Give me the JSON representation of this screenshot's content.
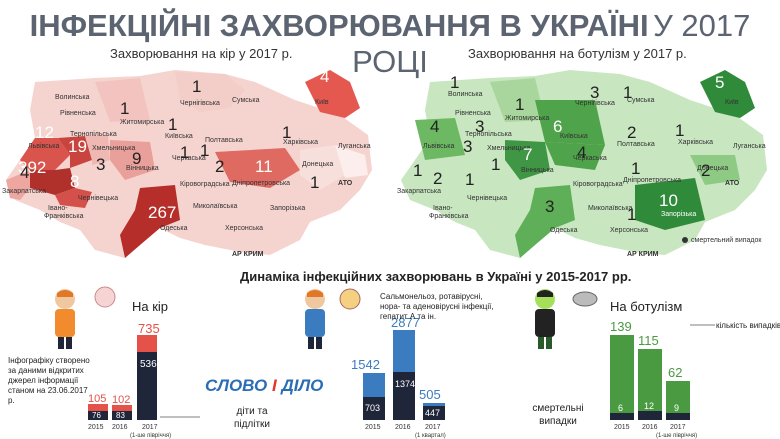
{
  "title": {
    "bold": "ІНФЕКЦІЙНІ ЗАХВОРЮВАННЯ В УКРАЇНІ",
    "light": "У 2017 РОЦІ"
  },
  "maps": {
    "measles": {
      "title": "Захворювання на кір у 2017 р.",
      "regions": {
        "volynska": "Волинська",
        "rivnenska": "Рівненська",
        "zhytomyrska": "Житомирська",
        "chernihivska": "Чернігівська",
        "sumska": "Сумська",
        "kyiv": "Київ",
        "kyivska": "Київська",
        "lvivska": "Львівська",
        "ternopilska": "Тернопільська",
        "khmelnytska": "Хмельницька",
        "vinnytska": "Вінницька",
        "cherkaska": "Черкаська",
        "poltavska": "Полтавська",
        "kharkivska": "Харківська",
        "luhanska": "Луганська",
        "zakarpatska": "Закарпатська",
        "ivano": "Івано-\nФранківська",
        "chernivetska": "Чернівецька",
        "kirovohradska": "Кіровоградська",
        "dnipropetrovska": "Дніпропетровська",
        "donetska": "Донецька",
        "mykolaivska": "Миколаївська",
        "zaporizka": "Запорізька",
        "odeska": "Одеська",
        "khersonska": "Херсонська",
        "ato": "АТО",
        "crimea": "АР КРИМ"
      },
      "values": {
        "kyiv": "4",
        "zhytomyrska": "1",
        "chernihivska": "1",
        "lvivska": "12",
        "ternopilska": "19",
        "ivano": "392",
        "chernivetska": "8",
        "zakarpatska": "4",
        "khmelnytska": "3",
        "vinnytska": "9",
        "kyivska": "1",
        "poltavska": "1",
        "cherkaska": "1",
        "kirovohradska": "2",
        "dnipropetrovska": "11",
        "ato": "1",
        "odeska": "267",
        "kharkivska": "1"
      }
    },
    "botulism": {
      "title": "Захворювання на ботулізм у 2017 р.",
      "values": {
        "kyiv": "5",
        "volynska": "1",
        "zhytomyrska": "1",
        "chernihivska": "3",
        "sumska": "1",
        "rivnenska": "3",
        "lvivska": "4",
        "ternopilska": "3",
        "kyivska": "6",
        "zakarpatska": "1",
        "ivano": "2",
        "chernivetska": "1",
        "khmelnytska": "1",
        "vinnytska": "7",
        "cherkaska": "4",
        "poltavska": "2",
        "kharkivska": "1",
        "dnipropetrovska": "1",
        "donetska": "2",
        "odeska": "3",
        "mykolaivska": "1",
        "zaporizka": "10"
      },
      "legend": "смертельний випадок"
    }
  },
  "dynamics_title": "Динаміка інфекційних захворювань в Україні у 2015-2017 рр.",
  "panels": {
    "measles": {
      "label": "На кір",
      "note": "Інфографіку створено за даними відкритих джерел інформації станом на 23.06.2017 р.",
      "children_label": "діти та\nпідлітки",
      "years": [
        "2015",
        "2016",
        "2017"
      ],
      "year_notes": [
        "",
        "",
        "(1-ше півріччя)"
      ],
      "totals": [
        "105",
        "102",
        "735"
      ],
      "children": [
        "76",
        "83",
        "536"
      ]
    },
    "intestinal": {
      "label": "Сальмонельоз, ротавірусні, нора- та аденовірусні інфекції, гепатит А та ін.",
      "years": [
        "2015",
        "2016",
        "2017"
      ],
      "year_notes": [
        "",
        "",
        "(1 квартал)"
      ],
      "totals": [
        "1542",
        "2877",
        "505"
      ],
      "children": [
        "703",
        "1374",
        "447"
      ]
    },
    "botulism": {
      "label": "На ботулізм",
      "cases_label": "кількість випадків",
      "deaths_label": "смертельні\nвипадки",
      "years": [
        "2015",
        "2016",
        "2017"
      ],
      "year_notes": [
        "",
        "",
        "(1-ше півріччя)"
      ],
      "totals": [
        "139",
        "115",
        "62"
      ],
      "deaths": [
        "6",
        "12",
        "9"
      ]
    }
  },
  "logo": {
    "a": "СЛОВО",
    "amp": "І",
    "b": "ДІЛО"
  },
  "colors": {
    "measles_dark": "#c63a34",
    "measles_light": "#f2c8c3",
    "intestinal": "#3b7cc0",
    "botulism": "#4a9a42",
    "dark_bar": "#1f2639"
  },
  "chart_data": [
    {
      "type": "bar",
      "title": "На кір",
      "categories": [
        "2015",
        "2016",
        "2017"
      ],
      "series": [
        {
          "name": "діти та підлітки",
          "values": [
            76,
            83,
            536
          ]
        }
      ],
      "totals": [
        105,
        102,
        735
      ]
    },
    {
      "type": "bar",
      "categories": [
        "2015",
        "2016",
        "2017"
      ],
      "totals": [
        1542,
        2877,
        505
      ],
      "children": [
        703,
        1374,
        447
      ]
    },
    {
      "type": "bar",
      "title": "На ботулізм",
      "categories": [
        "2015",
        "2016",
        "2017"
      ],
      "series": [
        {
          "name": "кількість випадків",
          "values": [
            139,
            115,
            62
          ]
        },
        {
          "name": "смертельні випадки",
          "values": [
            6,
            12,
            9
          ]
        }
      ]
    }
  ]
}
